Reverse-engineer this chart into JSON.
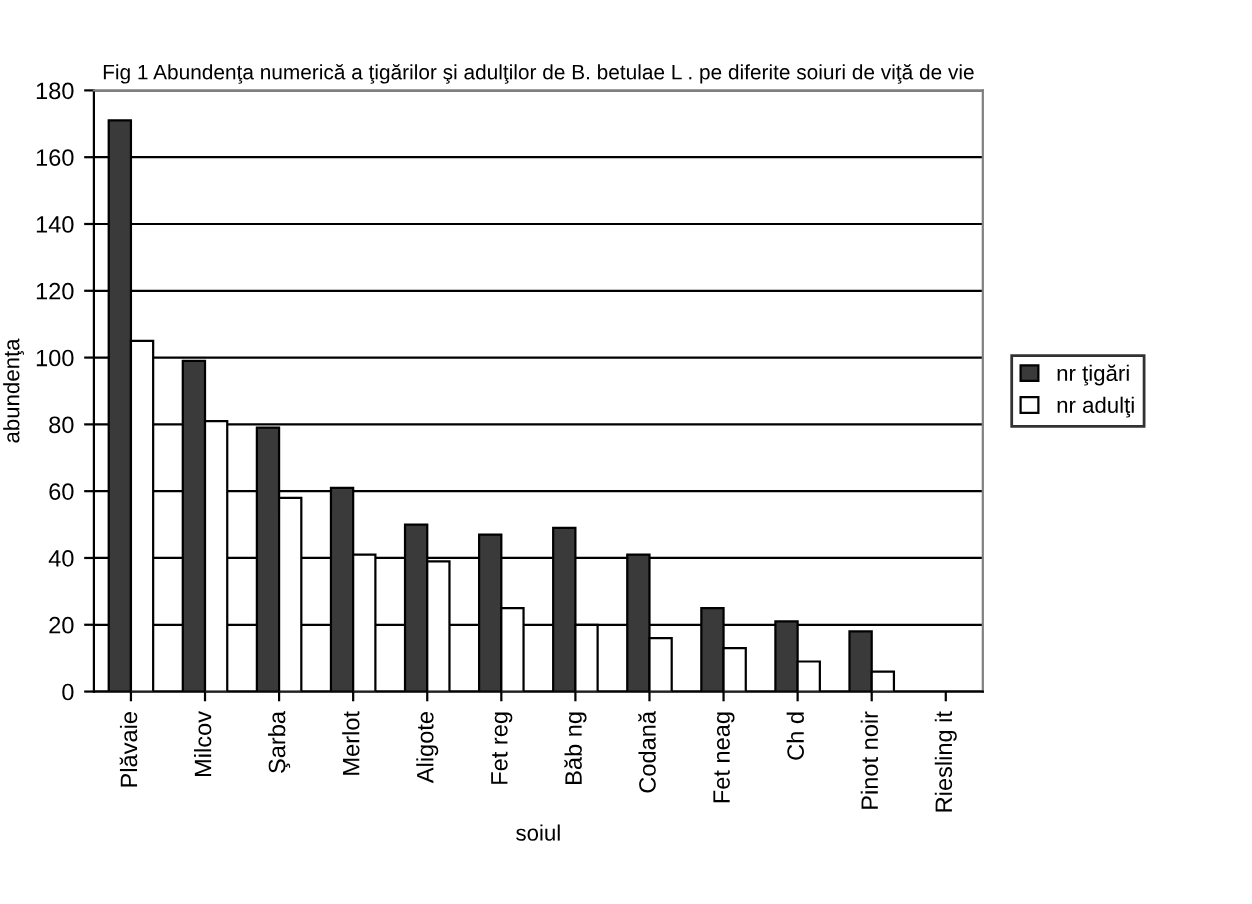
{
  "chart_data": {
    "type": "bar",
    "title": "Fig 1 Abundenţa numerică a ţigărilor şi adulţilor de B. betulae L . pe diferite soiuri de viţă de vie",
    "xlabel": "soiul",
    "ylabel": "abundenţa",
    "categories": [
      "Plăvaie",
      "Milcov",
      "Şarba",
      "Merlot",
      "Aligote",
      "Fet reg",
      "Băb ng",
      "Codană",
      "Fet neag",
      "Ch d",
      "Pinot noir",
      "Riesling it"
    ],
    "series": [
      {
        "name": "nr ţigări",
        "color": "#3a3a3a",
        "values": [
          171,
          99,
          79,
          61,
          50,
          47,
          49,
          41,
          25,
          21,
          18,
          null
        ]
      },
      {
        "name": "nr adulţi",
        "color": "#ffffff",
        "values": [
          105,
          81,
          58,
          41,
          39,
          25,
          20,
          16,
          13,
          9,
          6,
          null
        ]
      }
    ],
    "ylim": [
      0,
      180
    ],
    "yticks": [
      0,
      20,
      40,
      60,
      80,
      100,
      120,
      140,
      160,
      180
    ],
    "grid": "y",
    "legend": "right"
  }
}
